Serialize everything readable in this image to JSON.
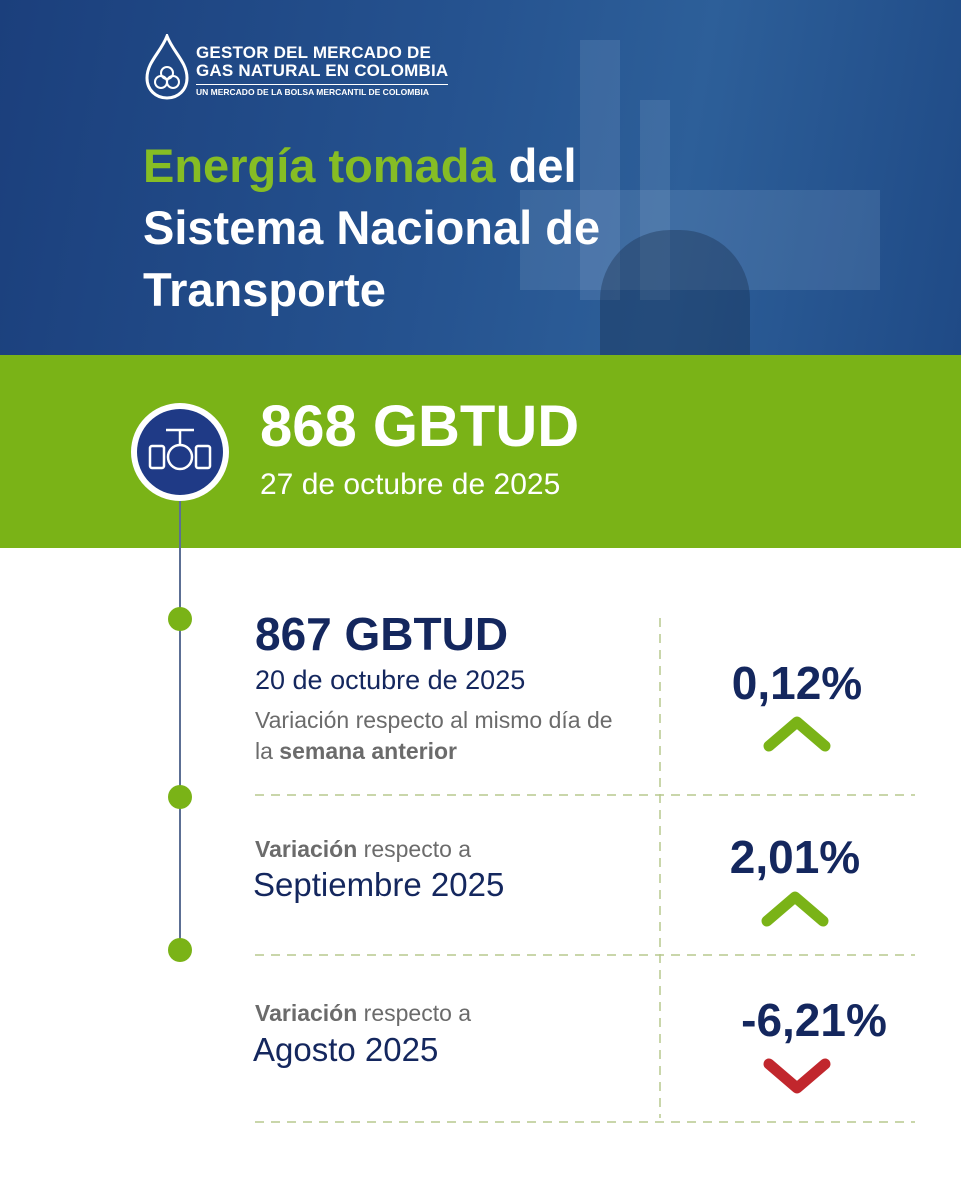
{
  "logo": {
    "line1": "GESTOR DEL MERCADO DE",
    "line2": "GAS NATURAL EN COLOMBIA",
    "line3": "UN MERCADO DE LA BOLSA MERCANTIL DE COLOMBIA"
  },
  "header": {
    "title_highlight": "Energía tomada",
    "title_rest": "del Sistema Nacional de Transporte"
  },
  "headline": {
    "value": "868 GBTUD",
    "date": "27 de octubre de 2025"
  },
  "rows": [
    {
      "value": "867 GBTUD",
      "date": "20 de octubre de 2025",
      "note": "Variación respecto al mismo día de la",
      "note_bold": "semana anterior",
      "percent": "0,12%",
      "direction": "up"
    },
    {
      "note_bold": "Variación",
      "note": "respecto a",
      "period": "Septiembre 2025",
      "percent": "2,01%",
      "direction": "up"
    },
    {
      "note_bold": "Variación",
      "note": "respecto a",
      "period": "Agosto 2025",
      "percent": "-6,21%",
      "direction": "down"
    }
  ]
}
